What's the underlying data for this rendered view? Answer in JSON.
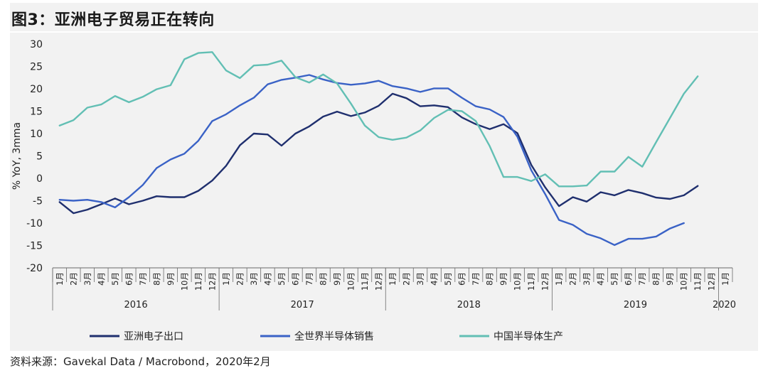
{
  "title": "图3：亚洲电子贸易正在转向",
  "source": "资料来源：Gavekal Data / Macrobond，2020年2月",
  "chart_data": {
    "type": "line",
    "ylabel": "% YoY, 3mma",
    "ylim": [
      -20,
      30
    ],
    "yticks": [
      30,
      25,
      20,
      15,
      10,
      5,
      0,
      -5,
      -10,
      -15,
      -20
    ],
    "month_labels": [
      "1月",
      "2月",
      "3月",
      "4月",
      "5月",
      "6月",
      "7月",
      "8月",
      "9月",
      "10月",
      "11月",
      "12月"
    ],
    "years": [
      "2016",
      "2017",
      "2018",
      "2019",
      "2020"
    ],
    "grid": false,
    "legend_position": "bottom",
    "series": [
      {
        "name": "亚洲电子出口",
        "color": "#1f2f6e",
        "values": [
          -5.3,
          -7.8,
          -7.0,
          -5.8,
          -4.5,
          -5.8,
          -5.0,
          -4.0,
          -4.2,
          -4.2,
          -2.8,
          -0.5,
          2.8,
          7.4,
          10.0,
          9.8,
          7.3,
          10.0,
          11.6,
          13.8,
          14.9,
          13.9,
          14.7,
          16.2,
          18.9,
          17.9,
          16.1,
          16.3,
          15.9,
          13.6,
          12.1,
          11.0,
          12.1,
          10.1,
          3.0,
          -2.0,
          -6.2,
          -4.2,
          -5.2,
          -3.1,
          -3.8,
          -2.6,
          -3.3,
          -4.3,
          -4.6,
          -3.8,
          -1.7
        ]
      },
      {
        "name": "全世界半导体销售",
        "color": "#3a62c6",
        "values": [
          -4.8,
          -5.0,
          -4.8,
          -5.3,
          -6.5,
          -4.2,
          -1.5,
          2.3,
          4.2,
          5.5,
          8.4,
          12.8,
          14.3,
          16.3,
          18.0,
          21.0,
          22.0,
          22.5,
          23.1,
          22.1,
          21.3,
          20.9,
          21.2,
          21.8,
          20.6,
          20.1,
          19.3,
          20.1,
          20.1,
          18.0,
          16.1,
          15.4,
          13.7,
          9.3,
          1.8,
          -3.5,
          -9.3,
          -10.4,
          -12.4,
          -13.4,
          -14.9,
          -13.5,
          -13.5,
          -13.0,
          -11.2,
          -10.0
        ]
      },
      {
        "name": "中国半导体生产",
        "color": "#62bfb4",
        "values": [
          11.8,
          13.0,
          15.8,
          16.5,
          18.4,
          17.0,
          18.2,
          19.9,
          20.8,
          26.6,
          28.0,
          28.2,
          24.1,
          22.4,
          25.2,
          25.4,
          26.3,
          22.6,
          21.4,
          23.2,
          21.2,
          16.7,
          11.8,
          9.2,
          8.6,
          9.1,
          10.7,
          13.5,
          15.3,
          15.0,
          12.8,
          7.2,
          0.3,
          0.3,
          -0.6,
          0.9,
          -1.8,
          -1.8,
          -1.6,
          1.5,
          1.5,
          4.8,
          2.6,
          8.1,
          13.5,
          18.9,
          22.8
        ]
      }
    ]
  }
}
